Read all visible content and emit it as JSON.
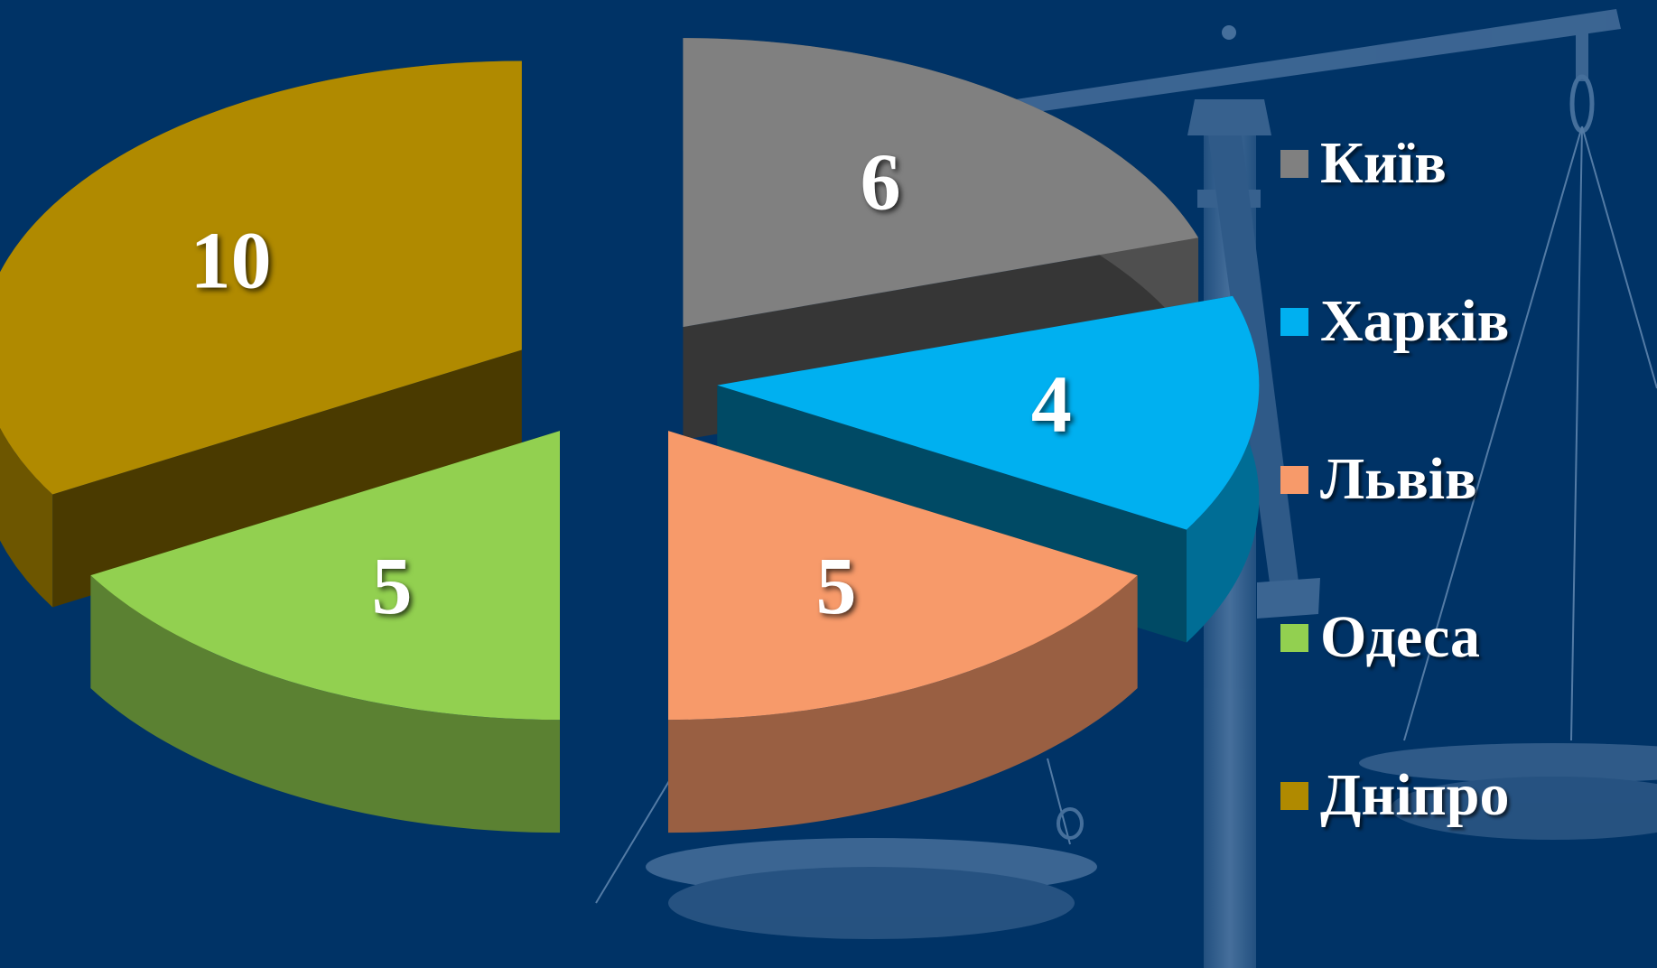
{
  "chart_data": {
    "type": "pie",
    "style": "3d-exploded",
    "categories": [
      "Київ",
      "Харків",
      "Львів",
      "Одеса",
      "Дніпро"
    ],
    "values": [
      6,
      4,
      5,
      5,
      10
    ],
    "colors": [
      "#808080",
      "#00B0F0",
      "#F79A6A",
      "#92D050",
      "#B08A00"
    ],
    "legend_position": "right"
  },
  "background_color": "#003366"
}
